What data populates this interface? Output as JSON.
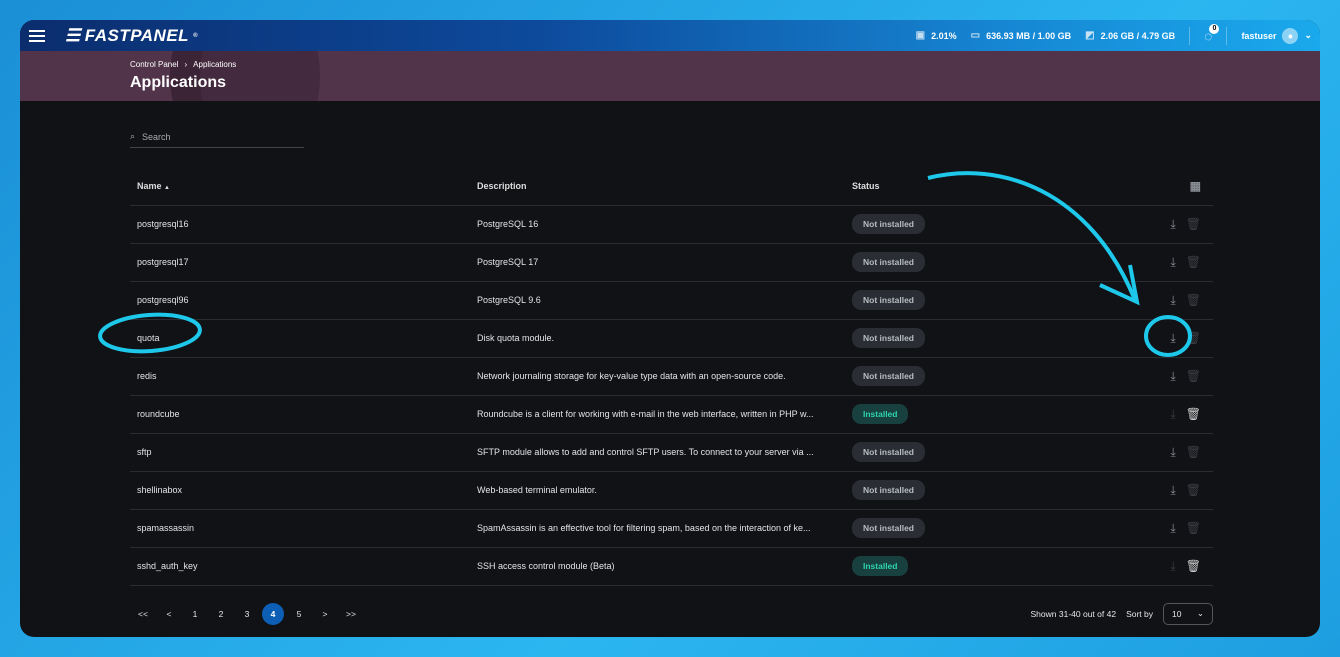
{
  "header": {
    "logo": "FASTPANEL",
    "cpu": "2.01%",
    "ram": "636.93 MB / 1.00 GB",
    "disk": "2.06 GB / 4.79 GB",
    "tasks_count": "0",
    "user": "fastuser"
  },
  "breadcrumb": [
    "Control Panel",
    "Applications"
  ],
  "page_title": "Applications",
  "search": {
    "placeholder": "Search"
  },
  "columns": {
    "name": "Name",
    "description": "Description",
    "status": "Status"
  },
  "rows": [
    {
      "name": "postgresql16",
      "description": "PostgreSQL 16",
      "status": "Not installed"
    },
    {
      "name": "postgresql17",
      "description": "PostgreSQL 17",
      "status": "Not installed"
    },
    {
      "name": "postgresql96",
      "description": "PostgreSQL 9.6",
      "status": "Not installed"
    },
    {
      "name": "quota",
      "description": "Disk quota module.",
      "status": "Not installed"
    },
    {
      "name": "redis",
      "description": "Network journaling storage for key-value type data with an open-source code.",
      "status": "Not installed"
    },
    {
      "name": "roundcube",
      "description": "Roundcube is a client for working with e-mail in the web interface, written in PHP w...",
      "status": "Installed"
    },
    {
      "name": "sftp",
      "description": "SFTP module allows to add and control SFTP users. To connect to your server via ...",
      "status": "Not installed"
    },
    {
      "name": "shellinabox",
      "description": "Web-based terminal emulator.",
      "status": "Not installed"
    },
    {
      "name": "spamassassin",
      "description": "SpamAssassin is an effective tool for filtering spam, based on the interaction of ke...",
      "status": "Not installed"
    },
    {
      "name": "sshd_auth_key",
      "description": "SSH access control module (Beta)",
      "status": "Installed"
    }
  ],
  "pagination": {
    "first": "<<",
    "prev": "<",
    "pages": [
      "1",
      "2",
      "3",
      "4",
      "5"
    ],
    "current": "4",
    "next": ">",
    "last": ">>",
    "shown": "Shown 31-40 out of 42",
    "sort_label": "Sort by",
    "per_page": "10"
  },
  "colors": {
    "annotation": "#1ec8ea",
    "installed": "#2ed3b0",
    "accent": "#0d5fb6"
  }
}
